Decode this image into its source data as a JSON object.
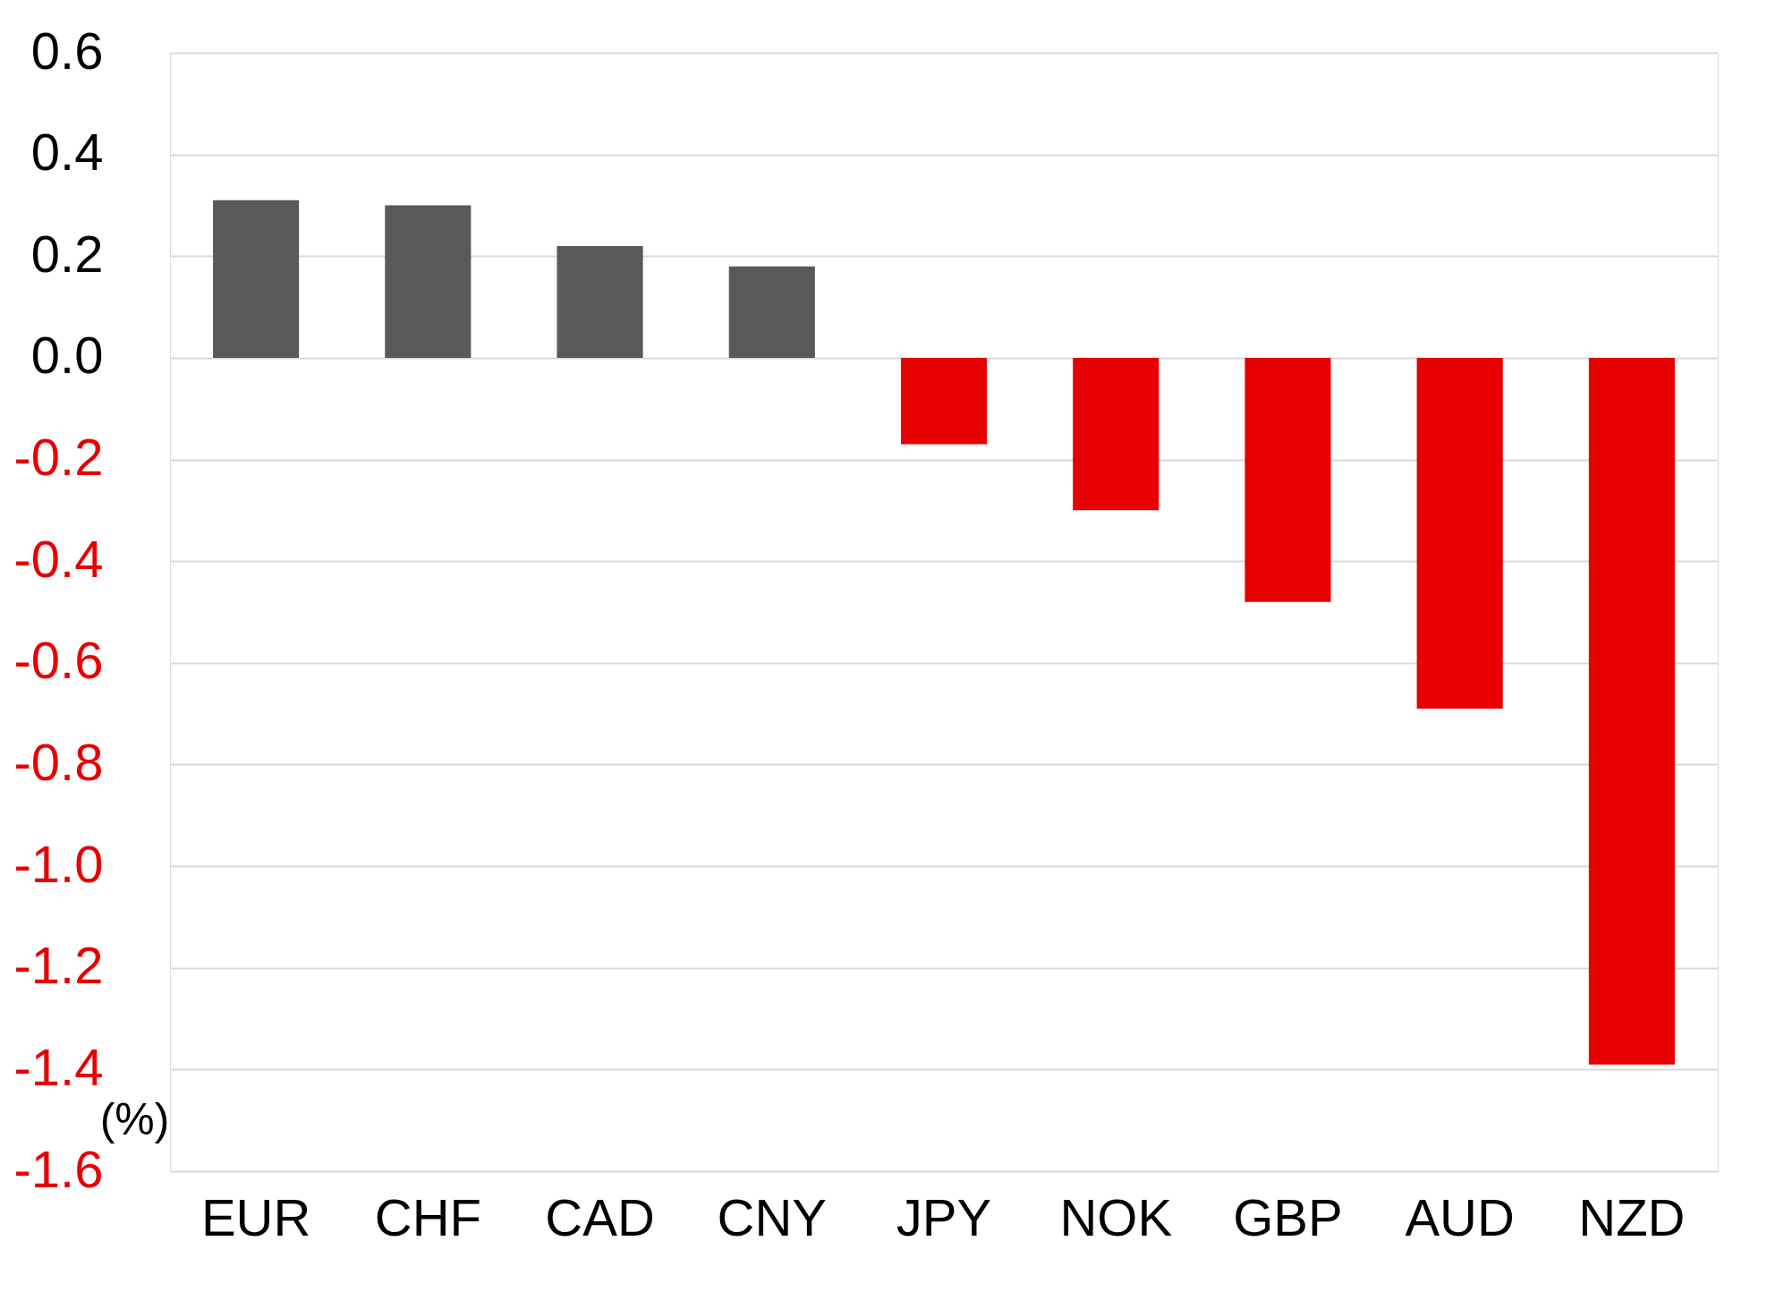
{
  "chart_data": {
    "type": "bar",
    "ylabel": "(%)",
    "categories": [
      "EUR",
      "CHF",
      "CAD",
      "CNY",
      "JPY",
      "NOK",
      "GBP",
      "AUD",
      "NZD"
    ],
    "values": [
      0.31,
      0.3,
      0.22,
      0.18,
      -0.17,
      -0.3,
      -0.48,
      -0.69,
      -1.39
    ],
    "colors": [
      "#595959",
      "#595959",
      "#595959",
      "#595959",
      "#e60000",
      "#e60000",
      "#e60000",
      "#e60000",
      "#e60000"
    ],
    "ylim": [
      -1.6,
      0.6
    ],
    "yticks": [
      {
        "value": 0.6,
        "label": "0.6"
      },
      {
        "value": 0.4,
        "label": "0.4"
      },
      {
        "value": 0.2,
        "label": "0.2"
      },
      {
        "value": 0,
        "label": "0.0"
      },
      {
        "value": -0.2,
        "label": "-0.2"
      },
      {
        "value": -0.4,
        "label": "-0.4"
      },
      {
        "value": -0.6,
        "label": "-0.6"
      },
      {
        "value": -0.8,
        "label": "-0.8"
      },
      {
        "value": -1.0,
        "label": "-1.0"
      },
      {
        "value": -1.2,
        "label": "-1.2"
      },
      {
        "value": -1.4,
        "label": "-1.4"
      },
      {
        "value": -1.6,
        "label": "-1.6"
      }
    ],
    "grid": "y"
  }
}
